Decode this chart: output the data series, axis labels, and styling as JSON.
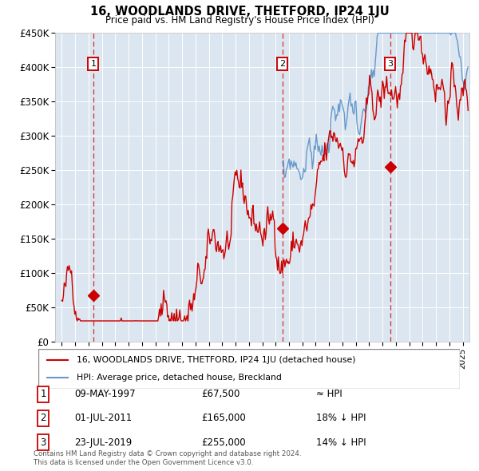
{
  "title": "16, WOODLANDS DRIVE, THETFORD, IP24 1JU",
  "subtitle": "Price paid vs. HM Land Registry's House Price Index (HPI)",
  "legend_line1": "16, WOODLANDS DRIVE, THETFORD, IP24 1JU (detached house)",
  "legend_line2": "HPI: Average price, detached house, Breckland",
  "sale1_date": "09-MAY-1997",
  "sale1_price": 67500,
  "sale1_year": 1997.36,
  "sale1_label": "≈ HPI",
  "sale2_date": "01-JUL-2011",
  "sale2_price": 165000,
  "sale2_year": 2011.5,
  "sale2_label": "18% ↓ HPI",
  "sale3_date": "23-JUL-2019",
  "sale3_price": 255000,
  "sale3_year": 2019.56,
  "sale3_label": "14% ↓ HPI",
  "footer1": "Contains HM Land Registry data © Crown copyright and database right 2024.",
  "footer2": "This data is licensed under the Open Government Licence v3.0.",
  "bg_color": "#dce6f0",
  "red_color": "#cc0000",
  "blue_color": "#6699cc",
  "ylim_min": 0,
  "ylim_max": 450000,
  "xlim_min": 1994.5,
  "xlim_max": 2025.5
}
